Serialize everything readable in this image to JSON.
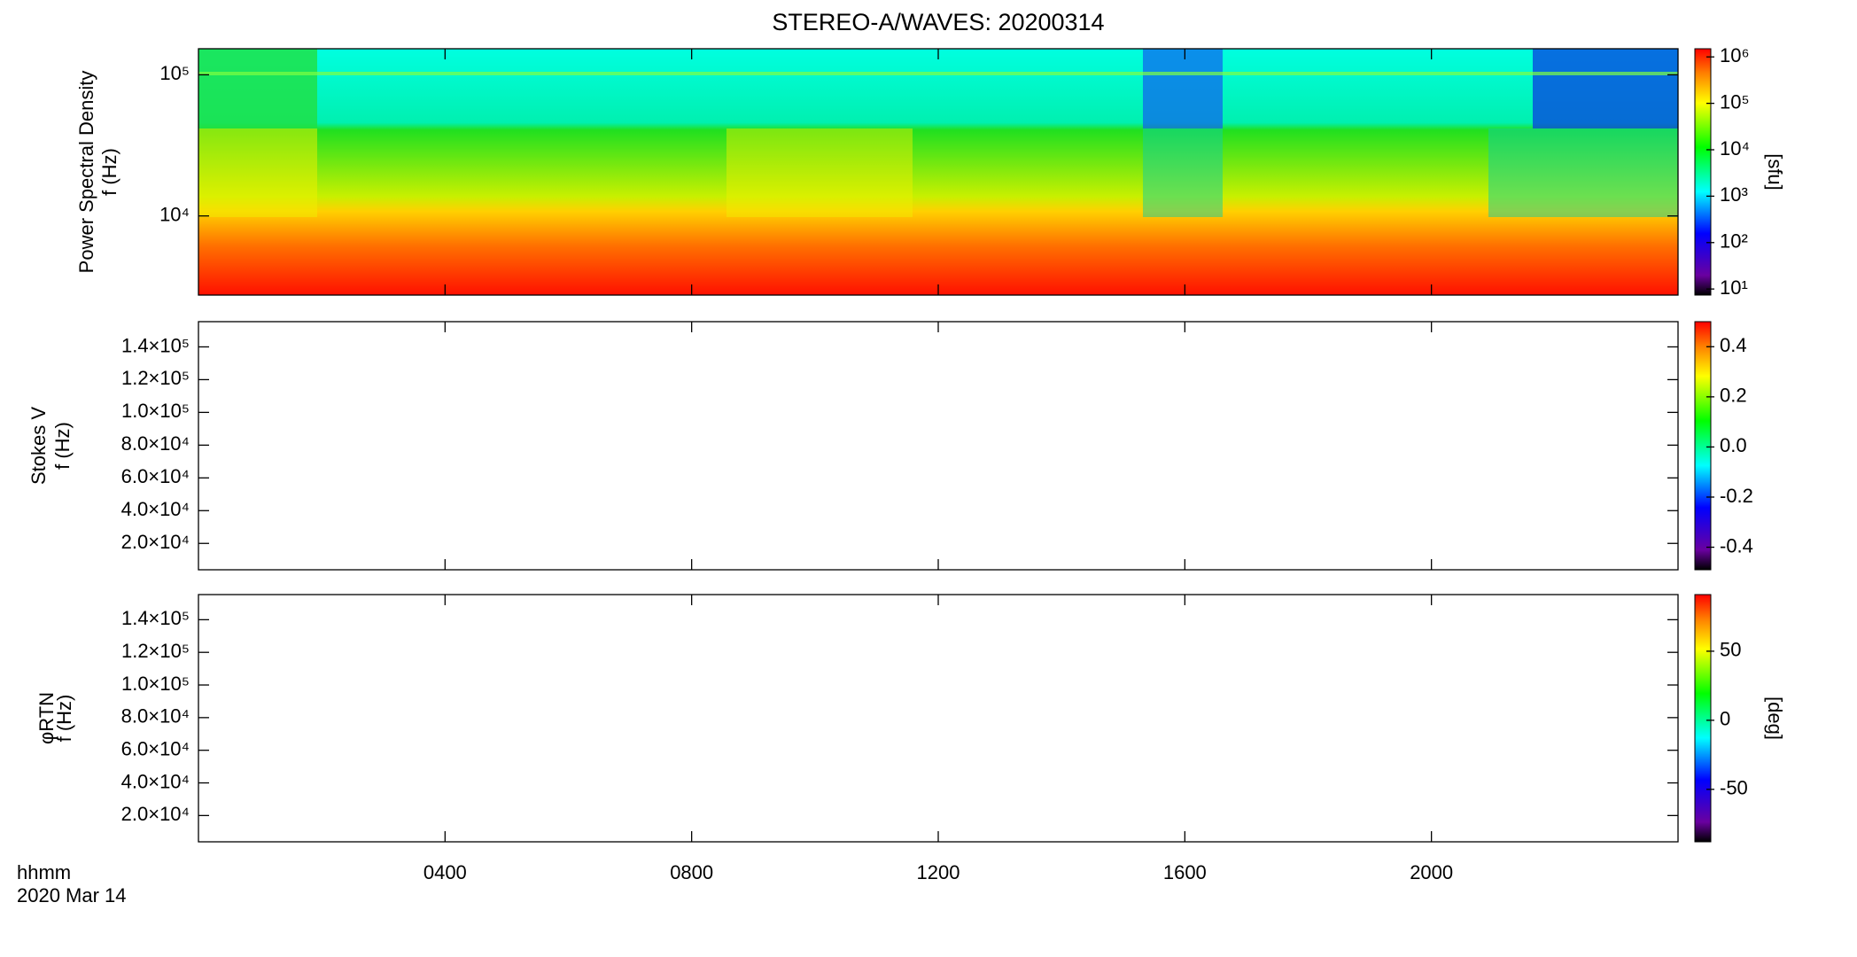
{
  "chart_data": [
    {
      "type": "spectrogram",
      "title": "STEREO-A/WAVES: 20200314",
      "ylabel": [
        "Power Spectral Density",
        "f (Hz)"
      ],
      "ylog": true,
      "ylim": [
        2750,
        153000
      ],
      "yticks": [
        {
          "value": 10000,
          "label": "10⁴"
        },
        {
          "value": 100000,
          "label": "10⁵"
        }
      ],
      "clog": true,
      "clim": [
        7.4,
        1500000
      ],
      "cticks": [
        {
          "value": 10,
          "label": "10¹"
        },
        {
          "value": 100,
          "label": "10²"
        },
        {
          "value": 1000,
          "label": "10³"
        },
        {
          "value": 10000,
          "label": "10⁴"
        },
        {
          "value": 100000,
          "label": "10⁵"
        },
        {
          "value": 1000000,
          "label": "10⁶"
        }
      ],
      "clabel": "[sfu]"
    },
    {
      "type": "spectrogram",
      "ylabel": [
        "Stokes V",
        "f (Hz)"
      ],
      "ylog": false,
      "ylim": [
        3900,
        155400
      ],
      "yticks": [
        {
          "value": 20000,
          "label": "2.0×10⁴"
        },
        {
          "value": 40000,
          "label": "4.0×10⁴"
        },
        {
          "value": 60000,
          "label": "6.0×10⁴"
        },
        {
          "value": 80000,
          "label": "8.0×10⁴"
        },
        {
          "value": 100000,
          "label": "1.0×10⁵"
        },
        {
          "value": 120000,
          "label": "1.2×10⁵"
        },
        {
          "value": 140000,
          "label": "1.4×10⁵"
        }
      ],
      "clog": false,
      "clim": [
        -0.49,
        0.5
      ],
      "cticks": [
        -0.4,
        -0.2,
        {
          "value": 0,
          "label": "0.0"
        },
        0.2,
        0.4
      ]
    },
    {
      "type": "spectrogram",
      "ylabel": [
        "φRTN",
        "f (Hz)"
      ],
      "ylog": false,
      "ylim": [
        3900,
        155400
      ],
      "yticks": [
        {
          "value": 20000,
          "label": "2.0×10⁴"
        },
        {
          "value": 40000,
          "label": "4.0×10⁴"
        },
        {
          "value": 60000,
          "label": "6.0×10⁴"
        },
        {
          "value": 80000,
          "label": "8.0×10⁴"
        },
        {
          "value": 100000,
          "label": "1.0×10⁵"
        },
        {
          "value": 120000,
          "label": "1.2×10⁵"
        },
        {
          "value": 140000,
          "label": "1.4×10⁵"
        }
      ],
      "clog": false,
      "clim": [
        -88,
        91
      ],
      "cticks": [
        -50,
        0,
        50
      ],
      "clabel": "[deg]",
      "xlabel": "hhmm",
      "date": "2020 Mar 14",
      "xlim": [
        0,
        24
      ],
      "xticks": [
        {
          "value": 4,
          "label": "0400"
        },
        {
          "value": 8,
          "label": "0800"
        },
        {
          "value": 12,
          "label": "1200"
        },
        {
          "value": 16,
          "label": "1600"
        },
        {
          "value": 20,
          "label": "2000"
        }
      ]
    }
  ]
}
